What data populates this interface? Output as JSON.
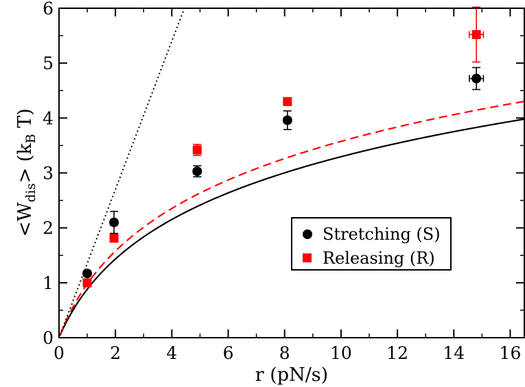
{
  "chart_data": {
    "type": "scatter",
    "xlabel": "r (pN/s)",
    "ylabel": "<W_dis> (k_B T)",
    "ylabel_parts": {
      "prefix": "<W",
      "sub1": "dis",
      "mid": "> (k",
      "sub2": "B",
      "suffix": " T)"
    },
    "xlim": [
      0,
      16.5
    ],
    "ylim": [
      0,
      6
    ],
    "xticks": [
      0,
      2,
      4,
      6,
      8,
      10,
      12,
      14,
      16
    ],
    "yticks": [
      0,
      1,
      2,
      3,
      4,
      5,
      6
    ],
    "grid": false,
    "legend_position": "center-right",
    "series": [
      {
        "name": "Stretching (S)",
        "color": "#000000",
        "marker": "circle",
        "x": [
          1.0,
          1.95,
          4.9,
          8.1,
          14.8
        ],
        "y": [
          1.17,
          2.1,
          3.03,
          3.96,
          4.72
        ],
        "yerr": [
          0.05,
          0.2,
          0.1,
          0.17,
          0.2
        ],
        "xerr": [
          0.05,
          0.12,
          0.12,
          0.12,
          0.25
        ]
      },
      {
        "name": "Releasing (R)",
        "color": "#ff0000",
        "marker": "square",
        "x": [
          1.0,
          1.95,
          4.9,
          8.1,
          14.8
        ],
        "y": [
          1.0,
          1.81,
          3.42,
          4.3,
          5.52
        ],
        "yerr": [
          0.03,
          0.06,
          0.1,
          0.05,
          0.5
        ],
        "xerr": [
          0.05,
          0.1,
          0.12,
          0.1,
          0.25
        ]
      }
    ],
    "fit_curves": [
      {
        "style": "solid",
        "color": "#000000",
        "a": 1.2,
        "b": 0.8,
        "x_max": 16.5
      },
      {
        "style": "dashed",
        "color": "#ff0000",
        "a": 1.35,
        "b": 0.85,
        "x_max": 16.5
      },
      {
        "style": "dotted",
        "color": "#000000",
        "a": 1.35,
        "b": 0.0,
        "x_max": 4.5
      }
    ]
  }
}
